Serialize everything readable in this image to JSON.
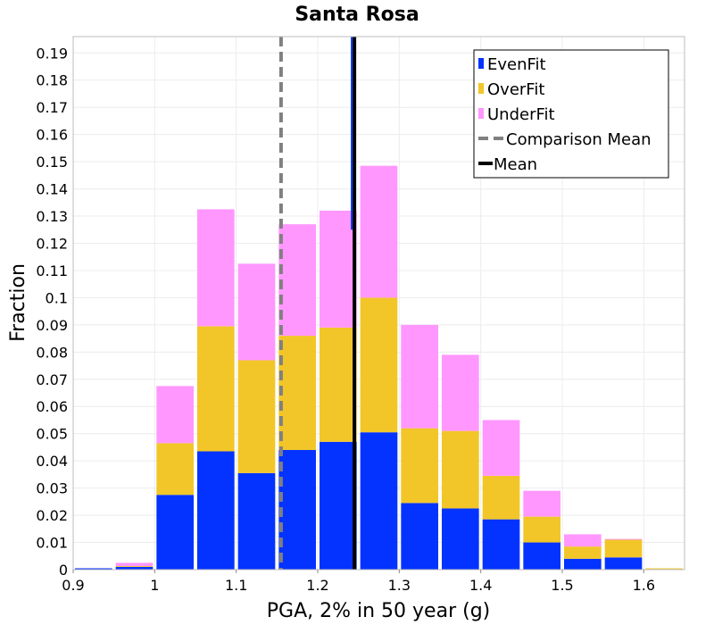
{
  "chart_data": {
    "type": "bar",
    "stacked": true,
    "title": "Santa Rosa",
    "xlabel": "PGA, 2% in 50 year (g)",
    "ylabel": "Fraction",
    "xlim": [
      0.9,
      1.65
    ],
    "ylim": [
      0,
      0.196
    ],
    "grid": true,
    "bin_width": 0.05,
    "bin_centers": [
      0.925,
      0.975,
      1.025,
      1.075,
      1.125,
      1.175,
      1.225,
      1.275,
      1.325,
      1.375,
      1.425,
      1.475,
      1.525,
      1.575,
      1.625
    ],
    "series": [
      {
        "name": "EvenFit",
        "color": "#0433ff",
        "values": [
          0.0005,
          0.001,
          0.0275,
          0.0435,
          0.0355,
          0.044,
          0.047,
          0.0505,
          0.0245,
          0.0225,
          0.0185,
          0.01,
          0.004,
          0.0045,
          0.0002
        ]
      },
      {
        "name": "OverFit",
        "color": "#f2c628",
        "values": [
          0.0,
          0.0003,
          0.019,
          0.046,
          0.0415,
          0.042,
          0.042,
          0.0495,
          0.0275,
          0.0285,
          0.016,
          0.0095,
          0.0045,
          0.0065,
          0.0003
        ]
      },
      {
        "name": "UnderFit",
        "color": "#ff97ff",
        "values": [
          0.0,
          0.0012,
          0.021,
          0.043,
          0.0355,
          0.041,
          0.043,
          0.0485,
          0.038,
          0.028,
          0.0205,
          0.0095,
          0.0045,
          0.0003,
          0.0
        ]
      }
    ],
    "mean": 1.245,
    "comparison_mean": 1.155,
    "mean_color": "#000000",
    "comparison_mean_color": "#808080",
    "x_ticks": [
      0.9,
      1.0,
      1.1,
      1.2,
      1.3,
      1.4,
      1.5,
      1.6
    ],
    "x_tick_labels": [
      "0.9",
      "1",
      "1.1",
      "1.2",
      "1.3",
      "1.4",
      "1.5",
      "1.6"
    ],
    "y_ticks": [
      0,
      0.01,
      0.02,
      0.03,
      0.04,
      0.05,
      0.06,
      0.07,
      0.08,
      0.09,
      0.1,
      0.11,
      0.12,
      0.13,
      0.14,
      0.15,
      0.16,
      0.17,
      0.18,
      0.19
    ],
    "y_tick_labels": [
      "0",
      "0.01",
      "0.02",
      "0.03",
      "0.04",
      "0.05",
      "0.06",
      "0.07",
      "0.08",
      "0.09",
      "0.1",
      "0.11",
      "0.12",
      "0.13",
      "0.14",
      "0.15",
      "0.16",
      "0.17",
      "0.18",
      "0.19"
    ],
    "legend": {
      "position": "top-right",
      "entries": [
        {
          "label": "EvenFit",
          "kind": "box",
          "color": "#0433ff"
        },
        {
          "label": "OverFit",
          "kind": "box",
          "color": "#f2c628"
        },
        {
          "label": "UnderFit",
          "kind": "box",
          "color": "#ff97ff"
        },
        {
          "label": "Comparison Mean",
          "kind": "dashed-line",
          "color": "#808080"
        },
        {
          "label": "Mean",
          "kind": "solid-line",
          "color": "#000000"
        }
      ]
    }
  }
}
